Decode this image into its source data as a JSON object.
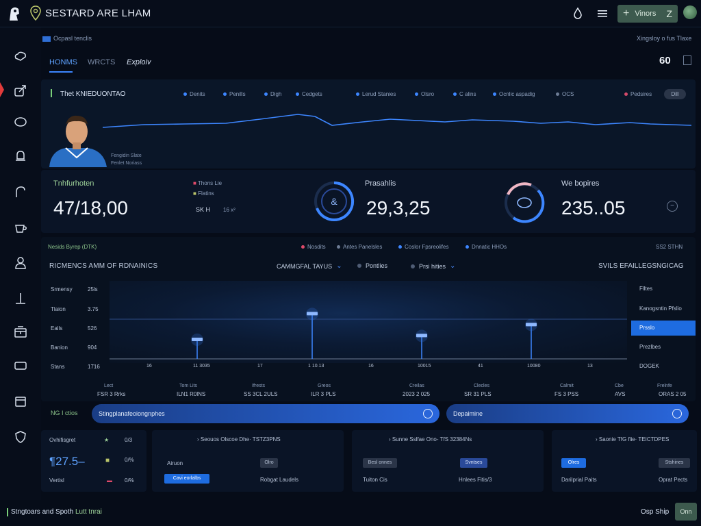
{
  "header": {
    "title": "SESTARD ARE LHAM",
    "views_label": "Vinors",
    "views_suffix": "Z"
  },
  "breadcrumb": {
    "left": "Ocpasl tenclis",
    "right": "Xingsloy o fus Tlaxe"
  },
  "tabs": [
    {
      "label": "HONMS"
    },
    {
      "label": "WRCTS"
    },
    {
      "label": "Exploiv"
    }
  ],
  "pager": {
    "value": "60"
  },
  "hero": {
    "title": "Thet KNIEDUONTAO",
    "legend": [
      {
        "label": "Denits",
        "color": "#3d86ff"
      },
      {
        "label": "Penills",
        "color": "#3d86ff"
      },
      {
        "label": "Digh",
        "color": "#3d86ff"
      },
      {
        "label": "Cedgets",
        "color": "#3d86ff"
      },
      {
        "label": "Lerud Stanies",
        "color": "#3d86ff"
      },
      {
        "label": "Olsro",
        "color": "#3d86ff"
      },
      {
        "label": "C alins",
        "color": "#3d86ff"
      },
      {
        "label": "Ocnlic aspadig",
        "color": "#3d86ff"
      },
      {
        "label": "OCS",
        "color": "#6d7c95"
      },
      {
        "label": "Pedsires",
        "color": "#d44a6a"
      }
    ],
    "button": "Dill",
    "player_caption_1": "Fengidin Slate",
    "player_caption_2": "Fenlet Noriass"
  },
  "stats": {
    "s1_label": "Tnhfurhoten",
    "s1_value": "47/18,00",
    "s1_mini_1": "Thons Lie",
    "s1_mini_2": "Flatins",
    "s1_mini_3": "SK H",
    "s1_mini_4": "16 x²",
    "s2_label": "Prasahlis",
    "s2_value": "29,3,25",
    "s3_label": "We bopires",
    "s3_value": "235..05"
  },
  "mid": {
    "head": "Nesids Byrep (DTK)",
    "legend": [
      {
        "label": "Nosdits",
        "color": "#e04a6a"
      },
      {
        "label": "Antes Panelsles",
        "color": "#6d7c95"
      },
      {
        "label": "Coslor Fpsreolifes",
        "color": "#3d86ff"
      },
      {
        "label": "Dnnatic HHOs",
        "color": "#3d86ff"
      }
    ],
    "right_head": "SS2 STHN",
    "title": "RICMENCS AMM OF RDNAINICS",
    "filters": [
      "CAMMGFAL TAYUS",
      "Pontlies",
      "Prsi hities"
    ],
    "right_title": "SVILS EFAILLEGSNGICAG",
    "rows": [
      {
        "label": "Srmensy",
        "val": "25ls"
      },
      {
        "label": "Tlaion",
        "val": "3.75"
      },
      {
        "label": "Ealls",
        "val": "526"
      },
      {
        "label": "Banion",
        "val": "904"
      },
      {
        "label": "Stans",
        "val": "1716"
      }
    ],
    "x_ticks": [
      "16",
      "11 3035",
      "17",
      "1 10.13",
      "16",
      "10015",
      "41",
      "10080",
      "13"
    ],
    "x_caps_1": [
      "Lect",
      "Tom Lits",
      "Ifrests",
      "Greos",
      "Creilas",
      "Clecles",
      "Calmit",
      "Cbe",
      "Frelnfe"
    ],
    "x_caps_2": [
      "FSR 3 Rrks",
      "ILN1 R0lNS",
      "SS 3CL 2ULS",
      "ILR 3 PLS",
      "2023 2 025",
      "SR 31 PLS",
      "FS 3 PSS",
      "AVS",
      "ORAS 2 05"
    ],
    "right_list": [
      {
        "label": "Flltes"
      },
      {
        "label": "Kanogsntin Pfslio"
      },
      {
        "label": "Prsslo",
        "active": true
      },
      {
        "label": "Prezlbes"
      },
      {
        "label": "DOGEK"
      }
    ],
    "chart": {
      "type": "scatter",
      "points": [
        {
          "x": "11 3035",
          "y": 0.35
        },
        {
          "x": "1 10.13",
          "y": 0.82
        },
        {
          "x": "10015",
          "y": 0.42
        },
        {
          "x": "10080",
          "y": 0.62
        }
      ]
    }
  },
  "search": {
    "ng_label": "NG I ctios",
    "left": "Stingplanafeoiongnphes",
    "right": "Depaimine"
  },
  "cards": {
    "c0": {
      "r1_label": "Ovhifisgret",
      "r1_val": "0/3",
      "code": "¶27.5–",
      "r2_val": "0/%",
      "r3_label": "Vertisl",
      "r3_val": "0/%"
    },
    "c1": {
      "title": "Seouos Olscoe Dhe· TSTZ3PNS",
      "l1": "Airuon",
      "chip1": "Olro",
      "chip2": "Cavi eorlalbs",
      "l2": "Robgat Laudels"
    },
    "c2": {
      "title": "Sunne Sslfae Ono- TfS 32384Ns",
      "chip1": "Besl onnes",
      "chip2": "Svntses",
      "l1": "Tuiton Cis",
      "l2": "Hnlees Fitis/3"
    },
    "c3": {
      "title": "Saonie TfG flie· TEICTDPES",
      "chip1": "Olres",
      "chip2": "Stshines",
      "l1": "Darilprial Paits",
      "l2": "Oprat Pects"
    }
  },
  "footer": {
    "left": "Stngtoars and Spoth",
    "left_accent": "Lutt tnrai",
    "right": "Osp Ship",
    "button": "Onn"
  },
  "colors": {
    "accent": "#3d86ff",
    "background": "#060c18",
    "panel": "#0a1628",
    "green": "#7ad07a",
    "red": "#e23b3b"
  }
}
